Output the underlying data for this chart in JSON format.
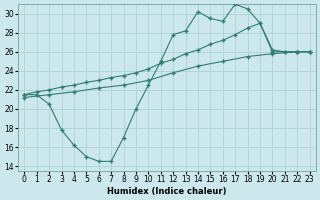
{
  "bg_color": "#cce8ec",
  "grid_color": "#b0d4d8",
  "line_color": "#2e7d6e",
  "marker_color": "#2e7d6e",
  "xlabel": "Humidex (Indice chaleur)",
  "xlim": [
    -0.5,
    23.5
  ],
  "ylim": [
    13.5,
    31
  ],
  "xticks": [
    0,
    1,
    2,
    3,
    4,
    5,
    6,
    7,
    8,
    9,
    10,
    11,
    12,
    13,
    14,
    15,
    16,
    17,
    18,
    19,
    20,
    21,
    22,
    23
  ],
  "yticks": [
    14,
    16,
    18,
    20,
    22,
    24,
    26,
    28,
    30
  ],
  "series": [
    {
      "x": [
        0,
        1,
        2,
        3,
        4,
        5,
        6,
        7,
        8,
        9,
        10,
        11,
        12,
        13,
        14,
        15,
        16,
        17,
        18,
        19,
        20,
        21,
        22,
        23
      ],
      "y": [
        21.5,
        21.5,
        20.5,
        17.8,
        16.2,
        15.0,
        14.5,
        14.5,
        17.0,
        20.0,
        22.5,
        25.0,
        27.8,
        28.2,
        30.2,
        29.5,
        29.2,
        31.0,
        30.5,
        29.0,
        26.0,
        26.0,
        26.0,
        26.0
      ]
    },
    {
      "x": [
        0,
        1,
        2,
        3,
        4,
        5,
        6,
        7,
        8,
        9,
        10,
        11,
        12,
        13,
        14,
        15,
        16,
        17,
        18,
        19,
        20,
        21,
        22,
        23
      ],
      "y": [
        21.5,
        21.8,
        22.0,
        22.3,
        22.5,
        22.8,
        23.0,
        23.3,
        23.5,
        23.8,
        24.2,
        24.8,
        25.2,
        25.8,
        26.2,
        26.8,
        27.2,
        27.8,
        28.5,
        29.0,
        26.2,
        26.0,
        26.0,
        26.0
      ]
    },
    {
      "x": [
        0,
        2,
        4,
        6,
        8,
        10,
        12,
        14,
        16,
        18,
        20,
        22,
        23
      ],
      "y": [
        21.2,
        21.5,
        21.8,
        22.2,
        22.5,
        23.0,
        23.8,
        24.5,
        25.0,
        25.5,
        25.8,
        26.0,
        26.0
      ]
    }
  ]
}
